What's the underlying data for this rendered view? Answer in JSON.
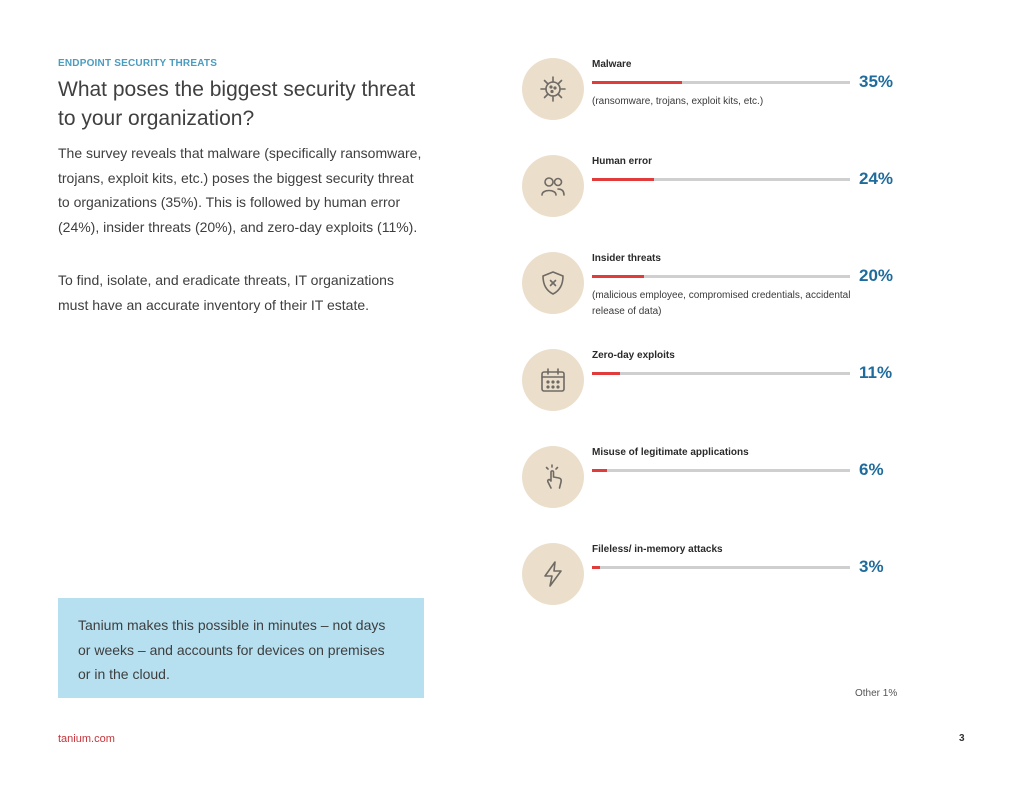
{
  "header": {
    "eyebrow": "ENDPOINT SECURITY THREATS",
    "title": "What poses the biggest security threat to your organization?"
  },
  "body": {
    "paragraph1": "The survey reveals that malware (specifically ransomware, trojans, exploit kits, etc.) poses the biggest security threat to organizations (35%). This is followed by human error (24%), insider threats (20%), and zero-day exploits (11%).",
    "paragraph2": "To find, isolate, and eradicate threats, IT organizations must have an accurate inventory of their IT estate."
  },
  "callout": {
    "text": "Tanium makes this possible in minutes – not days  or weeks – and accounts for devices on premises or in the cloud."
  },
  "threats": [
    {
      "label": "Malware",
      "value": 35,
      "display": "35%",
      "note": "(ransomware, trojans, exploit kits, etc.)",
      "icon": "virus-icon"
    },
    {
      "label": "Human error",
      "value": 24,
      "display": "24%",
      "note": "",
      "icon": "people-icon"
    },
    {
      "label": "Insider threats",
      "value": 20,
      "display": "20%",
      "note": "(malicious employee, compromised credentials, accidental release of data)",
      "icon": "shield-x-icon"
    },
    {
      "label": "Zero-day exploits",
      "value": 11,
      "display": "11%",
      "note": "",
      "icon": "calendar-icon"
    },
    {
      "label": "Misuse of legitimate applications",
      "value": 6,
      "display": "6%",
      "note": "",
      "icon": "tap-hand-icon"
    },
    {
      "label": "Fileless/ in-memory attacks",
      "value": 3,
      "display": "3%",
      "note": "",
      "icon": "lightning-icon"
    }
  ],
  "other_note": "Other 1%",
  "footer": {
    "link": "tanium.com",
    "page_number": "3"
  },
  "colors": {
    "accent_red": "#e23b3b",
    "percent_blue": "#1f6c9c",
    "eyebrow_blue": "#4a9cc0",
    "callout_bg": "#b6e0f0",
    "icon_circle": "#ebdfcc"
  }
}
